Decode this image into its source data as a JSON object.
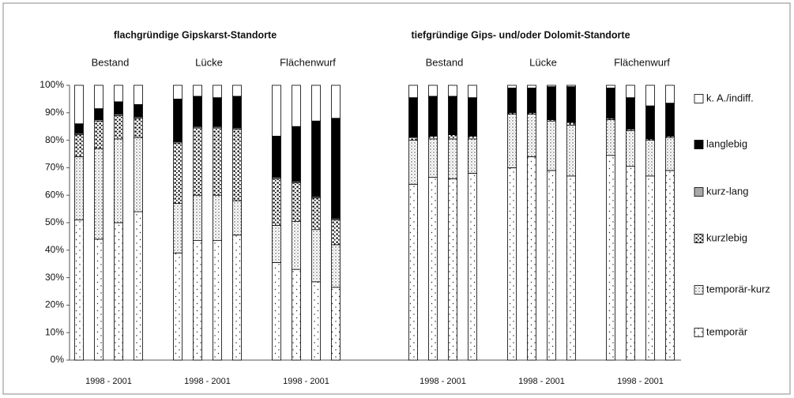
{
  "chart_data": {
    "type": "stacked-bar",
    "section_titles": [
      "flachgründige Gipskarst-Standorte",
      "tiefgründige Gips- und/oder Dolomit-Standorte"
    ],
    "groups": [
      {
        "name": "Bestand",
        "label": "1998 - 2001"
      },
      {
        "name": "Lücke",
        "label": "1998 - 2001"
      },
      {
        "name": "Flächenwurf",
        "label": "1998 - 2001"
      },
      {
        "name": "Bestand",
        "label": "1998 - 2001"
      },
      {
        "name": "Lücke",
        "label": "1998 - 2001"
      },
      {
        "name": "Flächenwurf",
        "label": "1998 - 2001"
      }
    ],
    "bars_per_group": 4,
    "series": [
      {
        "name": "temporär",
        "color": "#ffffff",
        "pattern": "sparse-dots",
        "values": [
          51,
          44,
          50,
          54,
          39,
          43.5,
          43.5,
          45.5,
          35.5,
          33,
          28.5,
          26.5,
          64,
          66.5,
          66,
          68,
          70,
          74,
          69,
          67,
          74.5,
          70.5,
          67,
          69
        ]
      },
      {
        "name": "temporär-kurz",
        "color": "#ffffff",
        "pattern": "dense-dots",
        "values": [
          23,
          33,
          30.5,
          27,
          18,
          16.5,
          16.5,
          12.5,
          13.5,
          17.5,
          19,
          15.5,
          16,
          14,
          14.5,
          12.5,
          19.5,
          15.5,
          18,
          18.5,
          13,
          13,
          13,
          12
        ]
      },
      {
        "name": "kurzlebig",
        "color": "#ffffff",
        "pattern": "heavy-dots",
        "values": [
          8,
          10,
          8.5,
          7,
          22,
          24.5,
          24.5,
          26,
          17,
          14,
          11.5,
          9,
          1,
          1,
          1.5,
          1,
          0.5,
          0.5,
          0.5,
          1,
          0.5,
          0.5,
          0.5,
          0.5
        ]
      },
      {
        "name": "kurz-lang",
        "color": "#a8a8a8",
        "pattern": "solid",
        "values": [
          0.5,
          0.5,
          0.5,
          0.5,
          0.5,
          0.5,
          0.5,
          0.5,
          0.5,
          0.5,
          0.5,
          0.5,
          0,
          0,
          0,
          0,
          0,
          0,
          0,
          0,
          0,
          0,
          0,
          0
        ]
      },
      {
        "name": "langlebig",
        "color": "#000000",
        "pattern": "solid",
        "values": [
          3.5,
          4,
          4.5,
          4.5,
          15.5,
          11,
          10.5,
          11.5,
          15,
          20,
          27.5,
          36.5,
          14.5,
          14.5,
          14,
          14,
          9,
          9,
          12,
          13,
          11,
          11.5,
          12,
          12
        ]
      },
      {
        "name": "k. A./indiff.",
        "color": "#ffffff",
        "pattern": "solid",
        "values": [
          14,
          8.5,
          6,
          7,
          5,
          4,
          4.5,
          4,
          18.5,
          15,
          13,
          12,
          4.5,
          4,
          4,
          4.5,
          1,
          1,
          0.5,
          0.5,
          1,
          4.5,
          7.5,
          6.5
        ]
      }
    ],
    "ylim": [
      0,
      100
    ],
    "yticks": [
      {
        "value": 0,
        "label": "0%"
      },
      {
        "value": 10,
        "label": "10%"
      },
      {
        "value": 20,
        "label": "20%"
      },
      {
        "value": 30,
        "label": "30%"
      },
      {
        "value": 40,
        "label": "40%"
      },
      {
        "value": 50,
        "label": "50%"
      },
      {
        "value": 60,
        "label": "60%"
      },
      {
        "value": 70,
        "label": "70%"
      },
      {
        "value": 80,
        "label": "80%"
      },
      {
        "value": 90,
        "label": "90%"
      },
      {
        "value": 100,
        "label": "100%"
      }
    ],
    "grid": false,
    "legend": "right"
  }
}
